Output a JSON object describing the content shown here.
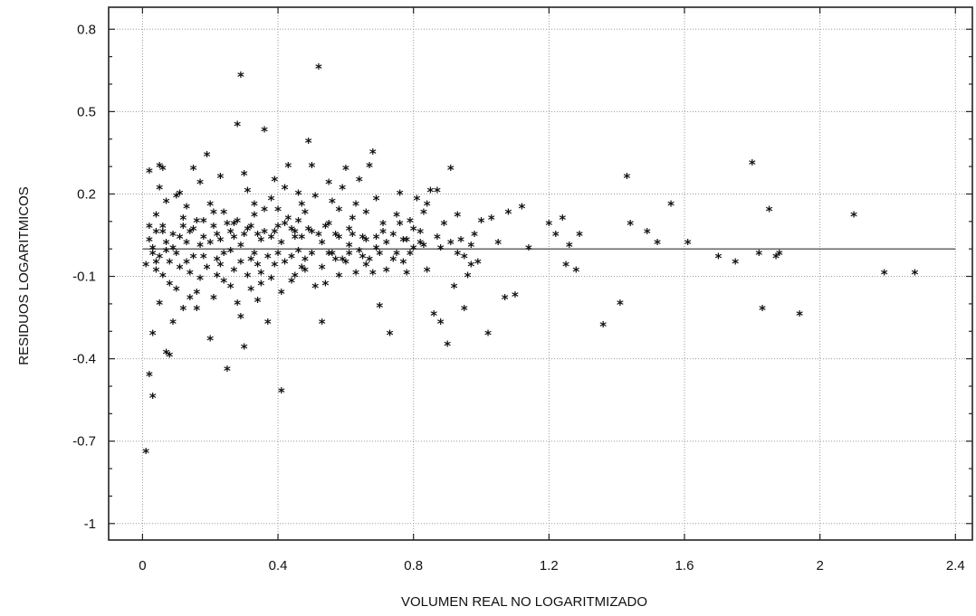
{
  "chart_data": {
    "type": "scatter",
    "title": "",
    "xlabel": "VOLUMEN REAL NO LOGARITMIZADO",
    "ylabel": "RESIDUOS LOGARITMICOS",
    "xlim": [
      -0.1,
      2.45
    ],
    "ylim": [
      -1.06,
      0.88
    ],
    "x_ticks": [
      0,
      0.4,
      0.8,
      1.2,
      1.6,
      2,
      2.4
    ],
    "x_tick_labels": [
      "0",
      "0.4",
      "0.8",
      "1.2",
      "1.6",
      "2",
      "2.4"
    ],
    "y_ticks": [
      0.8,
      0.5,
      0.2,
      -0.1,
      -0.4,
      -0.7,
      -1
    ],
    "y_tick_labels": [
      "0.8",
      "0.5",
      "0.2",
      "-0.1",
      "-0.4",
      "-0.7",
      "-1"
    ],
    "grid": true,
    "reference_line": {
      "y": 0.0,
      "x_range": [
        0,
        2.4
      ]
    },
    "marker": "*",
    "points": [
      [
        0.01,
        -0.74
      ],
      [
        0.02,
        -0.46
      ],
      [
        0.03,
        -0.54
      ],
      [
        0.02,
        0.28
      ],
      [
        0.03,
        -0.31
      ],
      [
        0.04,
        0.12
      ],
      [
        0.05,
        0.3
      ],
      [
        0.06,
        0.29
      ],
      [
        0.07,
        -0.38
      ],
      [
        0.08,
        -0.39
      ],
      [
        0.03,
        -0.02
      ],
      [
        0.04,
        -0.08
      ],
      [
        0.05,
        -0.2
      ],
      [
        0.06,
        0.06
      ],
      [
        0.07,
        0.02
      ],
      [
        0.08,
        -0.13
      ],
      [
        0.09,
        -0.27
      ],
      [
        0.1,
        0.19
      ],
      [
        0.11,
        0.2
      ],
      [
        0.12,
        0.08
      ],
      [
        0.13,
        -0.05
      ],
      [
        0.14,
        -0.18
      ],
      [
        0.15,
        0.29
      ],
      [
        0.16,
        -0.22
      ],
      [
        0.17,
        0.24
      ],
      [
        0.18,
        0.1
      ],
      [
        0.19,
        0.34
      ],
      [
        0.2,
        -0.33
      ],
      [
        0.21,
        0.13
      ],
      [
        0.22,
        -0.1
      ],
      [
        0.23,
        0.26
      ],
      [
        0.24,
        -0.02
      ],
      [
        0.25,
        -0.44
      ],
      [
        0.26,
        0.06
      ],
      [
        0.27,
        -0.08
      ],
      [
        0.28,
        0.45
      ],
      [
        0.29,
        -0.25
      ],
      [
        0.3,
        0.27
      ],
      [
        0.31,
        0.21
      ],
      [
        0.32,
        -0.15
      ],
      [
        0.33,
        0.12
      ],
      [
        0.34,
        -0.06
      ],
      [
        0.35,
        0.03
      ],
      [
        0.36,
        0.43
      ],
      [
        0.37,
        -0.27
      ],
      [
        0.38,
        0.18
      ],
      [
        0.39,
        0.25
      ],
      [
        0.4,
        -0.02
      ],
      [
        0.41,
        -0.52
      ],
      [
        0.42,
        0.09
      ],
      [
        0.43,
        0.3
      ],
      [
        0.44,
        -0.12
      ],
      [
        0.45,
        0.04
      ],
      [
        0.46,
        0.2
      ],
      [
        0.47,
        -0.07
      ],
      [
        0.48,
        0.13
      ],
      [
        0.49,
        0.39
      ],
      [
        0.5,
        0.3
      ],
      [
        0.51,
        -0.14
      ],
      [
        0.52,
        0.66
      ],
      [
        0.53,
        -0.27
      ],
      [
        0.54,
        0.08
      ],
      [
        0.55,
        -0.02
      ],
      [
        0.56,
        0.17
      ],
      [
        0.57,
        0.05
      ],
      [
        0.58,
        -0.1
      ],
      [
        0.59,
        0.22
      ],
      [
        0.6,
        0.29
      ],
      [
        0.61,
        0.01
      ],
      [
        0.62,
        0.11
      ],
      [
        0.63,
        -0.09
      ],
      [
        0.64,
        0.25
      ],
      [
        0.65,
        0.04
      ],
      [
        0.66,
        -0.06
      ],
      [
        0.67,
        0.3
      ],
      [
        0.68,
        0.35
      ],
      [
        0.69,
        0.18
      ],
      [
        0.7,
        -0.21
      ],
      [
        0.71,
        0.09
      ],
      [
        0.72,
        -0.08
      ],
      [
        0.73,
        -0.31
      ],
      [
        0.74,
        0.05
      ],
      [
        0.75,
        0.12
      ],
      [
        0.76,
        0.2
      ],
      [
        0.77,
        -0.05
      ],
      [
        0.78,
        0.03
      ],
      [
        0.79,
        0.1
      ],
      [
        0.8,
        0.07
      ],
      [
        0.81,
        0.18
      ],
      [
        0.82,
        0.02
      ],
      [
        0.83,
        0.13
      ],
      [
        0.84,
        -0.08
      ],
      [
        0.85,
        0.21
      ],
      [
        0.86,
        -0.24
      ],
      [
        0.87,
        0.21
      ],
      [
        0.88,
        -0.27
      ],
      [
        0.89,
        0.09
      ],
      [
        0.9,
        -0.35
      ],
      [
        0.91,
        0.29
      ],
      [
        0.92,
        -0.14
      ],
      [
        0.93,
        0.12
      ],
      [
        0.94,
        0.03
      ],
      [
        0.95,
        -0.22
      ],
      [
        0.96,
        -0.1
      ],
      [
        0.97,
        -0.06
      ],
      [
        0.98,
        0.05
      ],
      [
        1.0,
        0.1
      ],
      [
        1.02,
        -0.31
      ],
      [
        1.03,
        0.11
      ],
      [
        1.05,
        0.02
      ],
      [
        1.07,
        -0.18
      ],
      [
        1.08,
        0.13
      ],
      [
        1.1,
        -0.17
      ],
      [
        1.12,
        0.15
      ],
      [
        1.14,
        0.0
      ],
      [
        1.2,
        0.09
      ],
      [
        1.22,
        0.05
      ],
      [
        1.24,
        0.11
      ],
      [
        1.25,
        -0.06
      ],
      [
        1.26,
        0.01
      ],
      [
        1.28,
        -0.08
      ],
      [
        1.29,
        0.05
      ],
      [
        1.36,
        -0.28
      ],
      [
        1.41,
        -0.2
      ],
      [
        1.43,
        0.26
      ],
      [
        1.44,
        0.09
      ],
      [
        1.49,
        0.06
      ],
      [
        1.52,
        0.02
      ],
      [
        1.56,
        0.16
      ],
      [
        1.61,
        0.02
      ],
      [
        1.7,
        -0.03
      ],
      [
        1.75,
        -0.05
      ],
      [
        1.8,
        0.31
      ],
      [
        1.82,
        -0.02
      ],
      [
        1.83,
        -0.22
      ],
      [
        1.85,
        0.14
      ],
      [
        1.87,
        -0.03
      ],
      [
        1.88,
        -0.02
      ],
      [
        1.94,
        -0.24
      ],
      [
        2.1,
        0.12
      ],
      [
        2.19,
        -0.09
      ],
      [
        2.28,
        -0.09
      ],
      [
        0.29,
        0.63
      ],
      [
        0.01,
        -0.06
      ],
      [
        0.02,
        0.03
      ],
      [
        0.04,
        -0.05
      ],
      [
        0.05,
        0.22
      ],
      [
        0.06,
        -0.1
      ],
      [
        0.07,
        0.17
      ],
      [
        0.09,
        0.0
      ],
      [
        0.1,
        -0.15
      ],
      [
        0.11,
        0.04
      ],
      [
        0.12,
        -0.22
      ],
      [
        0.13,
        0.15
      ],
      [
        0.14,
        -0.09
      ],
      [
        0.15,
        0.07
      ],
      [
        0.16,
        -0.16
      ],
      [
        0.17,
        0.01
      ],
      [
        0.18,
        -0.03
      ],
      [
        0.2,
        0.16
      ],
      [
        0.21,
        -0.18
      ],
      [
        0.22,
        0.05
      ],
      [
        0.23,
        -0.06
      ],
      [
        0.24,
        0.13
      ],
      [
        0.26,
        -0.14
      ],
      [
        0.27,
        0.09
      ],
      [
        0.28,
        -0.2
      ],
      [
        0.29,
        0.01
      ],
      [
        0.3,
        -0.36
      ],
      [
        0.31,
        0.07
      ],
      [
        0.32,
        -0.04
      ],
      [
        0.33,
        0.16
      ],
      [
        0.34,
        -0.19
      ],
      [
        0.35,
        -0.09
      ],
      [
        0.36,
        0.14
      ],
      [
        0.38,
        -0.11
      ],
      [
        0.39,
        0.06
      ],
      [
        0.4,
        0.14
      ],
      [
        0.41,
        -0.16
      ],
      [
        0.42,
        0.22
      ],
      [
        0.44,
        0.07
      ],
      [
        0.45,
        -0.1
      ],
      [
        0.46,
        0.1
      ],
      [
        0.47,
        0.16
      ],
      [
        0.48,
        -0.04
      ],
      [
        0.5,
        0.06
      ],
      [
        0.51,
        0.19
      ],
      [
        0.53,
        0.02
      ],
      [
        0.54,
        -0.13
      ],
      [
        0.55,
        0.24
      ],
      [
        0.57,
        -0.04
      ],
      [
        0.58,
        0.14
      ],
      [
        0.6,
        -0.05
      ],
      [
        0.61,
        0.07
      ],
      [
        0.63,
        0.16
      ],
      [
        0.65,
        -0.03
      ],
      [
        0.66,
        0.13
      ],
      [
        0.68,
        -0.09
      ],
      [
        0.69,
        0.0
      ],
      [
        0.71,
        0.06
      ],
      [
        0.74,
        -0.04
      ],
      [
        0.76,
        0.09
      ],
      [
        0.78,
        -0.09
      ],
      [
        0.8,
        0.0
      ],
      [
        0.82,
        0.06
      ],
      [
        0.84,
        0.16
      ],
      [
        0.87,
        0.04
      ],
      [
        0.91,
        0.02
      ],
      [
        0.95,
        -0.03
      ],
      [
        0.99,
        -0.05
      ],
      [
        0.02,
        0.08
      ],
      [
        0.03,
        0.0
      ],
      [
        0.04,
        0.06
      ],
      [
        0.05,
        -0.03
      ],
      [
        0.06,
        0.08
      ],
      [
        0.07,
        -0.01
      ],
      [
        0.08,
        -0.05
      ],
      [
        0.09,
        0.05
      ],
      [
        0.1,
        -0.02
      ],
      [
        0.11,
        -0.07
      ],
      [
        0.12,
        0.11
      ],
      [
        0.13,
        0.02
      ],
      [
        0.14,
        0.06
      ],
      [
        0.15,
        -0.03
      ],
      [
        0.16,
        0.1
      ],
      [
        0.17,
        -0.11
      ],
      [
        0.18,
        0.04
      ],
      [
        0.19,
        -0.07
      ],
      [
        0.2,
        0.02
      ],
      [
        0.21,
        0.08
      ],
      [
        0.22,
        -0.04
      ],
      [
        0.23,
        0.03
      ],
      [
        0.24,
        -0.12
      ],
      [
        0.25,
        0.09
      ],
      [
        0.26,
        -0.01
      ],
      [
        0.27,
        0.04
      ],
      [
        0.28,
        0.1
      ],
      [
        0.29,
        -0.05
      ],
      [
        0.3,
        0.05
      ],
      [
        0.31,
        -0.1
      ],
      [
        0.32,
        0.08
      ],
      [
        0.33,
        -0.02
      ],
      [
        0.34,
        0.05
      ],
      [
        0.35,
        -0.13
      ],
      [
        0.36,
        0.06
      ],
      [
        0.37,
        -0.03
      ],
      [
        0.38,
        0.04
      ],
      [
        0.39,
        -0.06
      ],
      [
        0.4,
        0.08
      ],
      [
        0.41,
        0.02
      ],
      [
        0.42,
        -0.05
      ],
      [
        0.43,
        0.11
      ],
      [
        0.44,
        -0.03
      ],
      [
        0.45,
        0.06
      ],
      [
        0.46,
        -0.01
      ],
      [
        0.47,
        0.04
      ],
      [
        0.48,
        -0.08
      ],
      [
        0.49,
        0.07
      ],
      [
        0.5,
        -0.02
      ],
      [
        0.52,
        0.05
      ],
      [
        0.53,
        -0.07
      ],
      [
        0.55,
        0.09
      ],
      [
        0.56,
        -0.02
      ],
      [
        0.58,
        0.04
      ],
      [
        0.59,
        -0.04
      ],
      [
        0.61,
        -0.02
      ],
      [
        0.62,
        0.05
      ],
      [
        0.64,
        -0.01
      ],
      [
        0.66,
        0.03
      ],
      [
        0.67,
        -0.04
      ],
      [
        0.69,
        0.04
      ],
      [
        0.7,
        -0.02
      ],
      [
        0.72,
        0.02
      ],
      [
        0.75,
        -0.02
      ],
      [
        0.77,
        0.03
      ],
      [
        0.79,
        -0.02
      ],
      [
        0.83,
        0.01
      ],
      [
        0.88,
        0.0
      ],
      [
        0.93,
        -0.02
      ],
      [
        0.97,
        0.01
      ]
    ]
  }
}
